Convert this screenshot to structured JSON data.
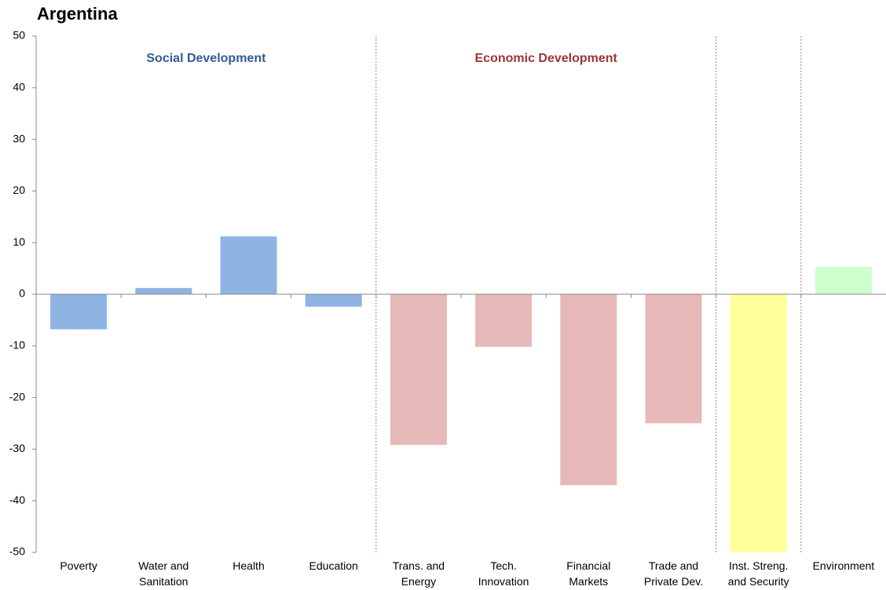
{
  "chart_data": {
    "type": "bar",
    "title": "Argentina",
    "annotations": [
      {
        "text": "Social Development",
        "color": "#2f5d93"
      },
      {
        "text": "Economic Development",
        "color": "#9c3535"
      }
    ],
    "categories": [
      "Poverty",
      "Water and\nSanitation",
      "Health",
      "Education",
      "Trans. and\nEnergy",
      "Tech.\nInnovation",
      "Financial\nMarkets",
      "Trade and\nPrivate Dev.",
      "Inst. Streng.\nand Security",
      "Environment"
    ],
    "values": [
      -6.8,
      1.2,
      11.2,
      -2.4,
      -29.2,
      -10.2,
      -37,
      -25,
      -50,
      5.3
    ],
    "colors": [
      "#8eb4e3",
      "#8eb4e3",
      "#8eb4e3",
      "#8eb4e3",
      "#e6b9b8",
      "#e6b9b8",
      "#e6b9b8",
      "#e6b9b8",
      "#ffff99",
      "#ccffcc"
    ],
    "ylim": [
      -50,
      50
    ],
    "yticks": [
      -50,
      -40,
      -30,
      -20,
      -10,
      0,
      10,
      20,
      30,
      40,
      50
    ],
    "grid": false
  }
}
